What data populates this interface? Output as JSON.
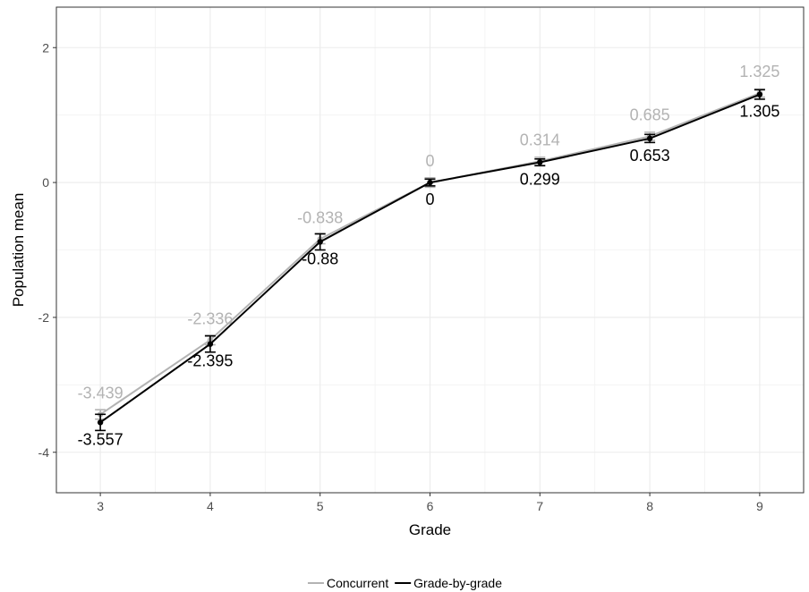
{
  "chart_data": {
    "type": "line",
    "title": "",
    "xlabel": "Grade",
    "ylabel": "Population mean",
    "x": [
      3,
      4,
      5,
      6,
      7,
      8,
      9
    ],
    "x_tick_labels": [
      "3",
      "4",
      "5",
      "6",
      "7",
      "8",
      "9"
    ],
    "xlim": [
      2.6,
      9.4
    ],
    "ylim": [
      -4.6,
      2.6
    ],
    "y_ticks": [
      -4,
      -2,
      0,
      2
    ],
    "y_tick_labels": [
      "-4",
      "-2",
      "0",
      "2"
    ],
    "grid": true,
    "legend_position": "bottom",
    "series": [
      {
        "name": "Concurrent",
        "color": "#b3b3b3",
        "values": [
          -3.439,
          -2.336,
          -0.838,
          0,
          0.314,
          0.685,
          1.325
        ],
        "labels": [
          "-3.439",
          "-2.336",
          "-0.838",
          "0",
          "0.314",
          "0.685",
          "1.325"
        ],
        "error": [
          0.07,
          0.07,
          0.07,
          0.07,
          0.06,
          0.06,
          0.06
        ]
      },
      {
        "name": "Grade-by-grade",
        "color": "#000000",
        "values": [
          -3.557,
          -2.395,
          -0.88,
          0,
          0.299,
          0.653,
          1.305
        ],
        "labels": [
          "-3.557",
          "-2.395",
          "-0.88",
          "0",
          "0.299",
          "0.653",
          "1.305"
        ],
        "error": [
          0.12,
          0.12,
          0.12,
          0.05,
          0.05,
          0.06,
          0.07
        ]
      }
    ]
  }
}
